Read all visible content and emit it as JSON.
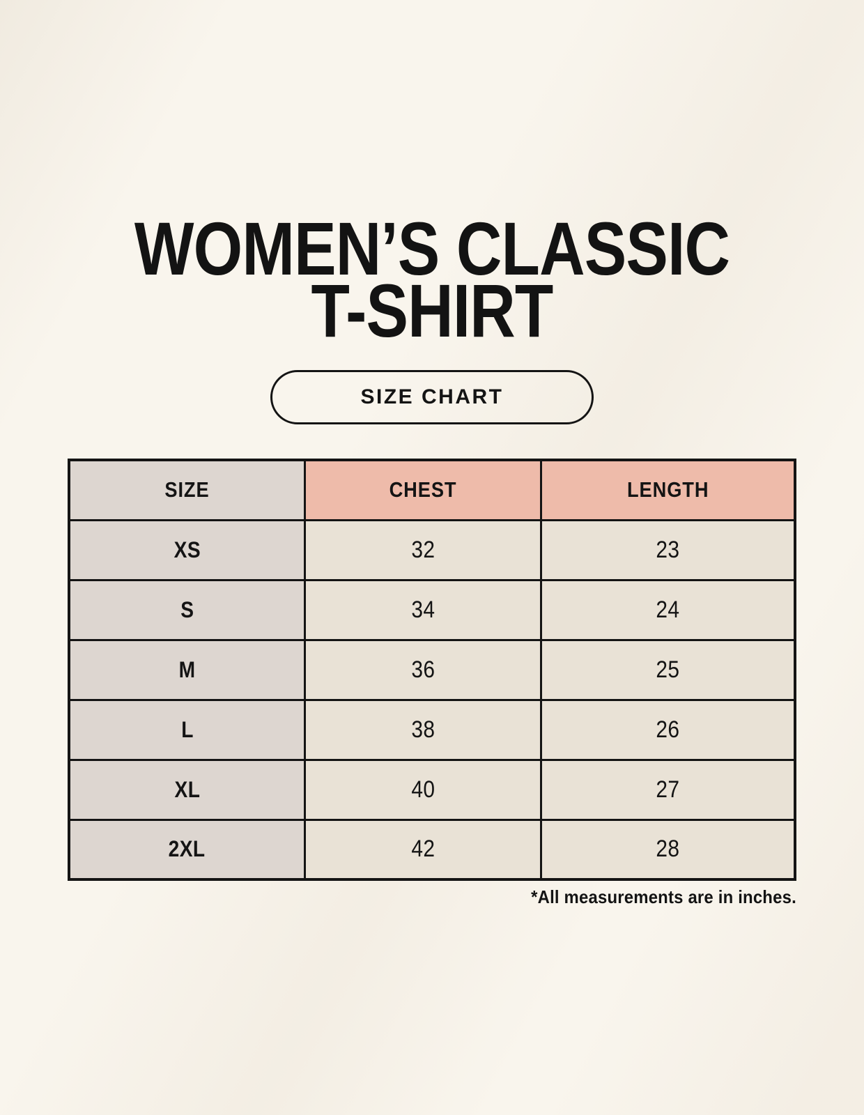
{
  "header": {
    "title_lines": [
      "WOMEN’S CLASSIC",
      "T-SHIRT"
    ],
    "badge_label": "SIZE CHART"
  },
  "table": {
    "columns": [
      "SIZE",
      "CHEST",
      "LENGTH"
    ],
    "rows": [
      {
        "size": "XS",
        "chest": "32",
        "length": "23"
      },
      {
        "size": "S",
        "chest": "34",
        "length": "24"
      },
      {
        "size": "M",
        "chest": "36",
        "length": "25"
      },
      {
        "size": "L",
        "chest": "38",
        "length": "26"
      },
      {
        "size": "XL",
        "chest": "40",
        "length": "27"
      },
      {
        "size": "2XL",
        "chest": "42",
        "length": "28"
      }
    ]
  },
  "footnote": "*All measurements are in inches.",
  "colors": {
    "background": "#f9f5ed",
    "header_accent_pink": "#eebbaa",
    "size_column_gray": "#ddd6d0",
    "value_cell_beige": "#e9e2d6",
    "table_border": "#141414",
    "text": "#141414"
  },
  "chart_data": {
    "type": "table",
    "title": "WOMEN’S CLASSIC T-SHIRT — SIZE CHART",
    "columns": [
      "SIZE",
      "CHEST",
      "LENGTH"
    ],
    "rows": [
      [
        "XS",
        32,
        23
      ],
      [
        "S",
        34,
        24
      ],
      [
        "M",
        36,
        25
      ],
      [
        "L",
        38,
        26
      ],
      [
        "XL",
        40,
        27
      ],
      [
        "2XL",
        42,
        28
      ]
    ],
    "units": "inches",
    "notes": "*All measurements are in inches."
  }
}
